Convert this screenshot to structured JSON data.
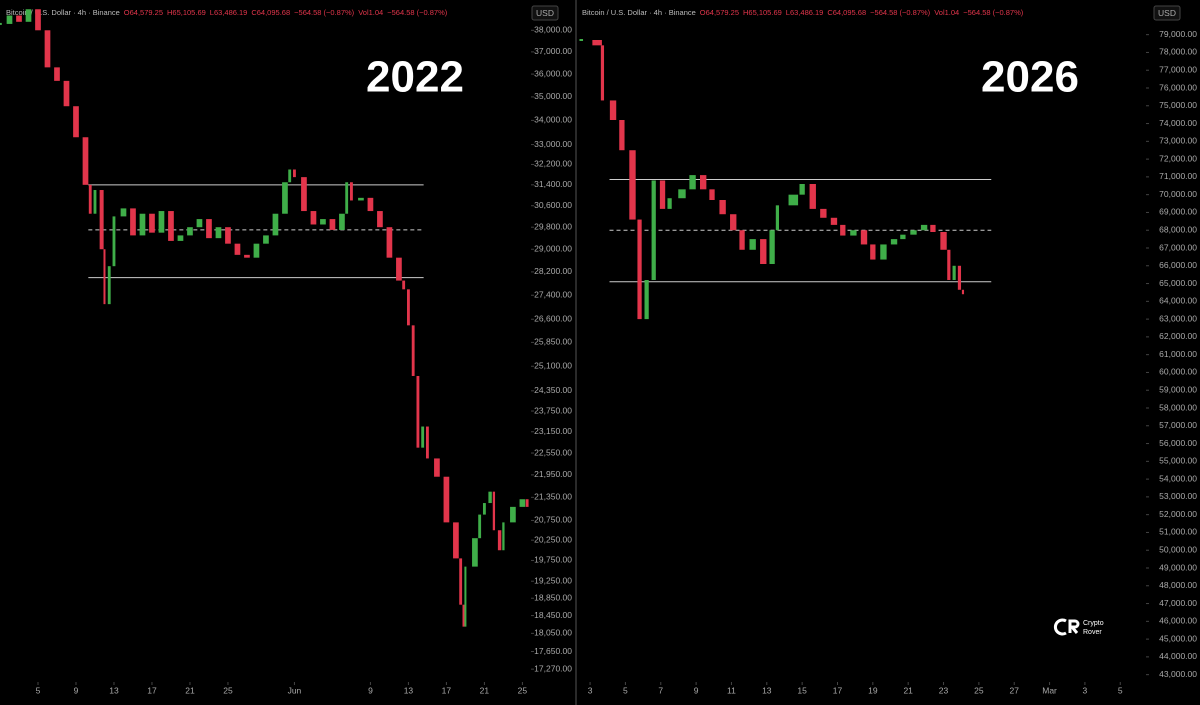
{
  "chart_data": [
    {
      "type": "candlestick",
      "title": "2022",
      "currency": "USD",
      "log_scale": true,
      "header": [
        "Bitcoin / U.S. Dollar · 4h · Binance",
        "O64,579.25",
        "H65,105.69",
        "L63,486.19",
        "C64,095.68",
        "−564.58 (−0.87%)",
        "Vol1.04",
        "−564.58 (−0.87%)"
      ],
      "up_color": "#3fae49",
      "down_color": "#e2354b",
      "x": [
        1,
        2,
        3,
        4,
        5,
        6,
        7,
        8,
        9,
        10,
        10.5,
        11,
        11.7,
        12,
        12.5,
        13,
        14,
        15,
        16,
        17,
        18,
        19,
        20,
        21,
        22,
        23,
        24,
        25,
        26,
        27,
        28,
        29,
        30,
        31,
        31.5,
        32,
        33,
        34,
        35,
        36,
        37,
        37.5,
        38,
        39,
        40,
        41,
        42,
        43,
        43.5,
        44,
        44.5,
        45,
        45.5,
        46,
        47,
        48,
        49,
        49.5,
        49.8,
        50,
        51,
        51.5,
        52,
        52.6,
        53,
        53.6,
        54,
        55,
        56,
        56.5
      ],
      "values": [
        38300,
        38700,
        38400,
        39000,
        38000,
        36300,
        35700,
        34600,
        33300,
        31400,
        30300,
        31200,
        29000,
        27100,
        28400,
        30200,
        30500,
        29500,
        30300,
        29600,
        30400,
        29300,
        29500,
        29800,
        30100,
        29400,
        29800,
        29200,
        28800,
        28700,
        29200,
        29500,
        30300,
        31500,
        32000,
        31700,
        30400,
        29900,
        30100,
        29700,
        30300,
        31500,
        30800,
        30900,
        30400,
        29800,
        28700,
        27900,
        27600,
        26400,
        24800,
        22700,
        23300,
        22400,
        21900,
        20700,
        19800,
        18700,
        18200,
        19600,
        20300,
        20900,
        21200,
        21500,
        20500,
        20000,
        20700,
        21100,
        21300,
        21100
      ],
      "levels": [
        {
          "value": 31400,
          "style": "solid",
          "from": 10.3,
          "to": 45.6
        },
        {
          "value": 29700,
          "style": "dashed",
          "from": 10.3,
          "to": 45.6
        },
        {
          "value": 28000,
          "style": "solid",
          "from": 10.3,
          "to": 45.6
        }
      ],
      "xlim": [
        1,
        56.8
      ],
      "xticks": [
        5,
        9,
        13,
        17,
        21,
        25,
        {
          "value": 32,
          "label": "Jun"
        },
        {
          "value": 40,
          "label": "9"
        },
        {
          "value": 44,
          "label": "13"
        },
        {
          "value": 48,
          "label": "17"
        },
        {
          "value": 52,
          "label": "21"
        },
        {
          "value": 56,
          "label": "25"
        }
      ],
      "ylim": [
        17040,
        39060
      ],
      "yticks": [
        {
          "value": 38000,
          "label": "38,000.00"
        },
        {
          "value": 37000,
          "label": "37,000.00"
        },
        {
          "value": 36000,
          "label": "36,000.00"
        },
        {
          "value": 35000,
          "label": "35,000.00"
        },
        {
          "value": 34000,
          "label": "34,000.00"
        },
        {
          "value": 33000,
          "label": "33,000.00"
        },
        {
          "value": 32200,
          "label": "32,200.00"
        },
        {
          "value": 31400,
          "label": "31,400.00"
        },
        {
          "value": 30600,
          "label": "30,600.00"
        },
        {
          "value": 29800,
          "label": "29,800.00"
        },
        {
          "value": 29000,
          "label": "29,000.00"
        },
        {
          "value": 28200,
          "label": "28,200.00"
        },
        {
          "value": 27400,
          "label": "27,400.00"
        },
        {
          "value": 26600,
          "label": "26,600.00"
        },
        {
          "value": 25850,
          "label": "25,850.00"
        },
        {
          "value": 25100,
          "label": "25,100.00"
        },
        {
          "value": 24350,
          "label": "24,350.00"
        },
        {
          "value": 23750,
          "label": "23,750.00"
        },
        {
          "value": 23150,
          "label": "23,150.00"
        },
        {
          "value": 22550,
          "label": "22,550.00"
        },
        {
          "value": 21950,
          "label": "21,950.00"
        },
        {
          "value": 21350,
          "label": "21,350.00"
        },
        {
          "value": 20750,
          "label": "20,750.00"
        },
        {
          "value": 20250,
          "label": "20,250.00"
        },
        {
          "value": 19750,
          "label": "19,750.00"
        },
        {
          "value": 19250,
          "label": "19,250.00"
        },
        {
          "value": 18850,
          "label": "18,850.00"
        },
        {
          "value": 18450,
          "label": "18,450.00"
        },
        {
          "value": 18050,
          "label": "18,050.00"
        },
        {
          "value": 17650,
          "label": "17,650.00"
        },
        {
          "value": 17270,
          "label": "17,270.00"
        }
      ]
    },
    {
      "type": "candlestick",
      "title": "2026",
      "currency": "USD",
      "log_scale": false,
      "header": [
        "Bitcoin / U.S. Dollar · 4h · Binance",
        "O64,579.25",
        "H65,105.69",
        "L63,486.19",
        "C64,095.68",
        "−564.58 (−0.87%)",
        "Vol1.04",
        "−564.58 (−0.87%)"
      ],
      "up_color": "#3fae49",
      "down_color": "#e2354b",
      "x": [
        2.5,
        3.4,
        3.7,
        4.3,
        4.8,
        5.4,
        5.8,
        6.2,
        6.6,
        7.1,
        7.5,
        8.2,
        8.8,
        9.4,
        9.9,
        10.5,
        11.1,
        11.6,
        12.2,
        12.8,
        13.3,
        13.6,
        14.5,
        15,
        15.6,
        16.2,
        16.8,
        17.3,
        17.9,
        18.5,
        19,
        19.6,
        20.2,
        20.7,
        21.3,
        21.9,
        22.4,
        23,
        23.3,
        23.6,
        23.9,
        24.1
      ],
      "values": [
        78700,
        78400,
        75300,
        74200,
        72500,
        68600,
        63000,
        65200,
        70800,
        69200,
        69800,
        70300,
        71100,
        70300,
        69700,
        68900,
        68000,
        66900,
        67500,
        66100,
        68000,
        69400,
        70000,
        70600,
        69200,
        68700,
        68300,
        67700,
        68000,
        67200,
        66350,
        67200,
        67500,
        67750,
        68000,
        68300,
        67900,
        66900,
        65200,
        66000,
        64650,
        64400
      ],
      "levels": [
        {
          "value": 70850,
          "style": "solid",
          "from": 4.1,
          "to": 25.7
        },
        {
          "value": 68000,
          "style": "dashed",
          "from": 4.1,
          "to": 25.7
        },
        {
          "value": 65100,
          "style": "solid",
          "from": 4.1,
          "to": 25.7
        }
      ],
      "xlim": [
        2.43,
        34.4
      ],
      "xticks": [
        3,
        5,
        7,
        9,
        11,
        13,
        15,
        17,
        19,
        21,
        23,
        25,
        27,
        {
          "value": 29,
          "label": "Mar"
        },
        {
          "value": 31,
          "label": "3"
        },
        {
          "value": 33,
          "label": "5"
        }
      ],
      "ylim": [
        42700,
        80500
      ],
      "yticks": [
        {
          "value": 79000,
          "label": "79,000.00"
        },
        {
          "value": 78000,
          "label": "78,000.00"
        },
        {
          "value": 77000,
          "label": "77,000.00"
        },
        {
          "value": 76000,
          "label": "76,000.00"
        },
        {
          "value": 75000,
          "label": "75,000.00"
        },
        {
          "value": 74000,
          "label": "74,000.00"
        },
        {
          "value": 73000,
          "label": "73,000.00"
        },
        {
          "value": 72000,
          "label": "72,000.00"
        },
        {
          "value": 71000,
          "label": "71,000.00"
        },
        {
          "value": 70000,
          "label": "70,000.00"
        },
        {
          "value": 69000,
          "label": "69,000.00"
        },
        {
          "value": 68000,
          "label": "68,000.00"
        },
        {
          "value": 67000,
          "label": "67,000.00"
        },
        {
          "value": 66000,
          "label": "66,000.00"
        },
        {
          "value": 65000,
          "label": "65,000.00"
        },
        {
          "value": 64000,
          "label": "64,000.00"
        },
        {
          "value": 63000,
          "label": "63,000.00"
        },
        {
          "value": 62000,
          "label": "62,000.00"
        },
        {
          "value": 61000,
          "label": "61,000.00"
        },
        {
          "value": 60000,
          "label": "60,000.00"
        },
        {
          "value": 59000,
          "label": "59,000.00"
        },
        {
          "value": 58000,
          "label": "58,000.00"
        },
        {
          "value": 57000,
          "label": "57,000.00"
        },
        {
          "value": 56000,
          "label": "56,000.00"
        },
        {
          "value": 55000,
          "label": "55,000.00"
        },
        {
          "value": 54000,
          "label": "54,000.00"
        },
        {
          "value": 53000,
          "label": "53,000.00"
        },
        {
          "value": 52000,
          "label": "52,000.00"
        },
        {
          "value": 51000,
          "label": "51,000.00"
        },
        {
          "value": 50000,
          "label": "50,000.00"
        },
        {
          "value": 49000,
          "label": "49,000.00"
        },
        {
          "value": 48000,
          "label": "48,000.00"
        },
        {
          "value": 47000,
          "label": "47,000.00"
        },
        {
          "value": 46000,
          "label": "46,000.00"
        },
        {
          "value": 45000,
          "label": "45,000.00"
        },
        {
          "value": 44000,
          "label": "44,000.00"
        },
        {
          "value": 43000,
          "label": "43,000.00"
        }
      ]
    }
  ],
  "watermark": [
    "Crypto",
    "Rover"
  ]
}
